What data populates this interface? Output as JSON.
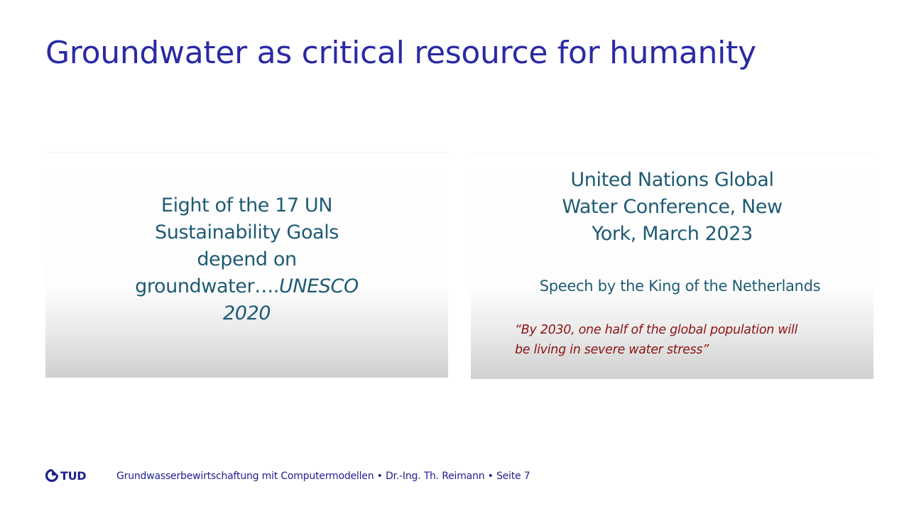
{
  "slide": {
    "title": "Groundwater as critical resource for humanity"
  },
  "left_panel": {
    "line1": "Eight of the 17 UN",
    "line2": "Sustainability Goals",
    "line3": "depend on",
    "line4_regular": "groundwater….",
    "line4_italic": "UNESCO",
    "line5_italic": "2020"
  },
  "right_panel": {
    "heading_line1": "United Nations Global",
    "heading_line2": "Water Conference, New",
    "heading_line3": "York, March 2023",
    "speech": "Speech by the King of the Netherlands",
    "quote_line1": "“By 2030, one half of the global population will",
    "quote_line2": "be living in severe water stress”"
  },
  "footer": {
    "logo_text": "TUD",
    "text": "Grundwasserbewirtschaftung mit Computermodellen • Dr.-Ing. Th. Reimann • Seite 7"
  },
  "colors": {
    "title": "#2a2aa5",
    "panel_text": "#1e5b73",
    "quote": "#8b1414",
    "footer": "#1d1f8f"
  }
}
